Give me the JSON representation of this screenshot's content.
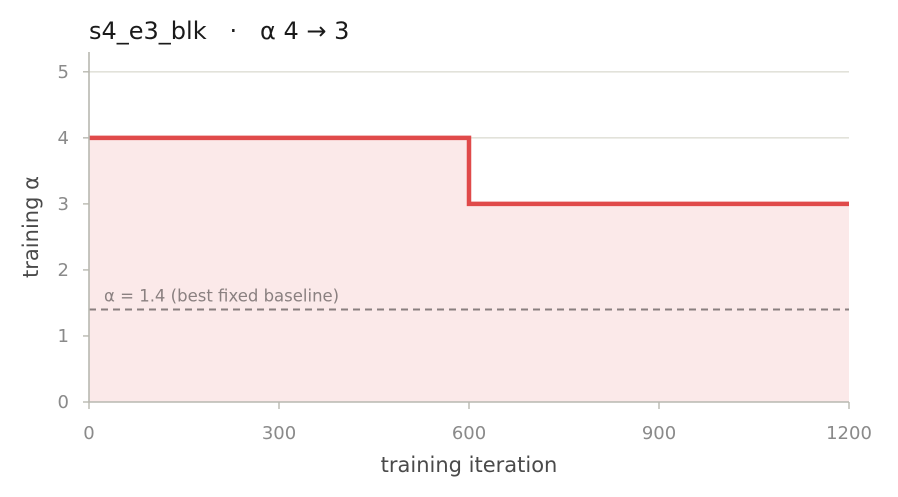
{
  "chart_data": {
    "type": "line",
    "title": "s4_e3_blk   ·   α 4 → 3",
    "xlabel": "training iteration",
    "ylabel": "training α",
    "xlim": [
      0,
      1200
    ],
    "ylim": [
      0,
      5.3
    ],
    "x_ticks": [
      "0",
      "300",
      "600",
      "900",
      "1200"
    ],
    "y_ticks": [
      "0",
      "1",
      "2",
      "3",
      "4",
      "5"
    ],
    "grid": "horizontal",
    "series": [
      {
        "step": true,
        "filled": true,
        "color": "#e04a4a",
        "fill_color": "#fbe9e9",
        "points": [
          {
            "x": 0,
            "y": 4
          },
          {
            "x": 600,
            "y": 4
          },
          {
            "x": 600,
            "y": 3
          },
          {
            "x": 1200,
            "y": 3
          }
        ]
      }
    ],
    "reference_line": {
      "y": 1.4,
      "label": "α = 1.4 (best fixed baseline)",
      "color": "#8a7f7f",
      "style": "dashed"
    }
  }
}
